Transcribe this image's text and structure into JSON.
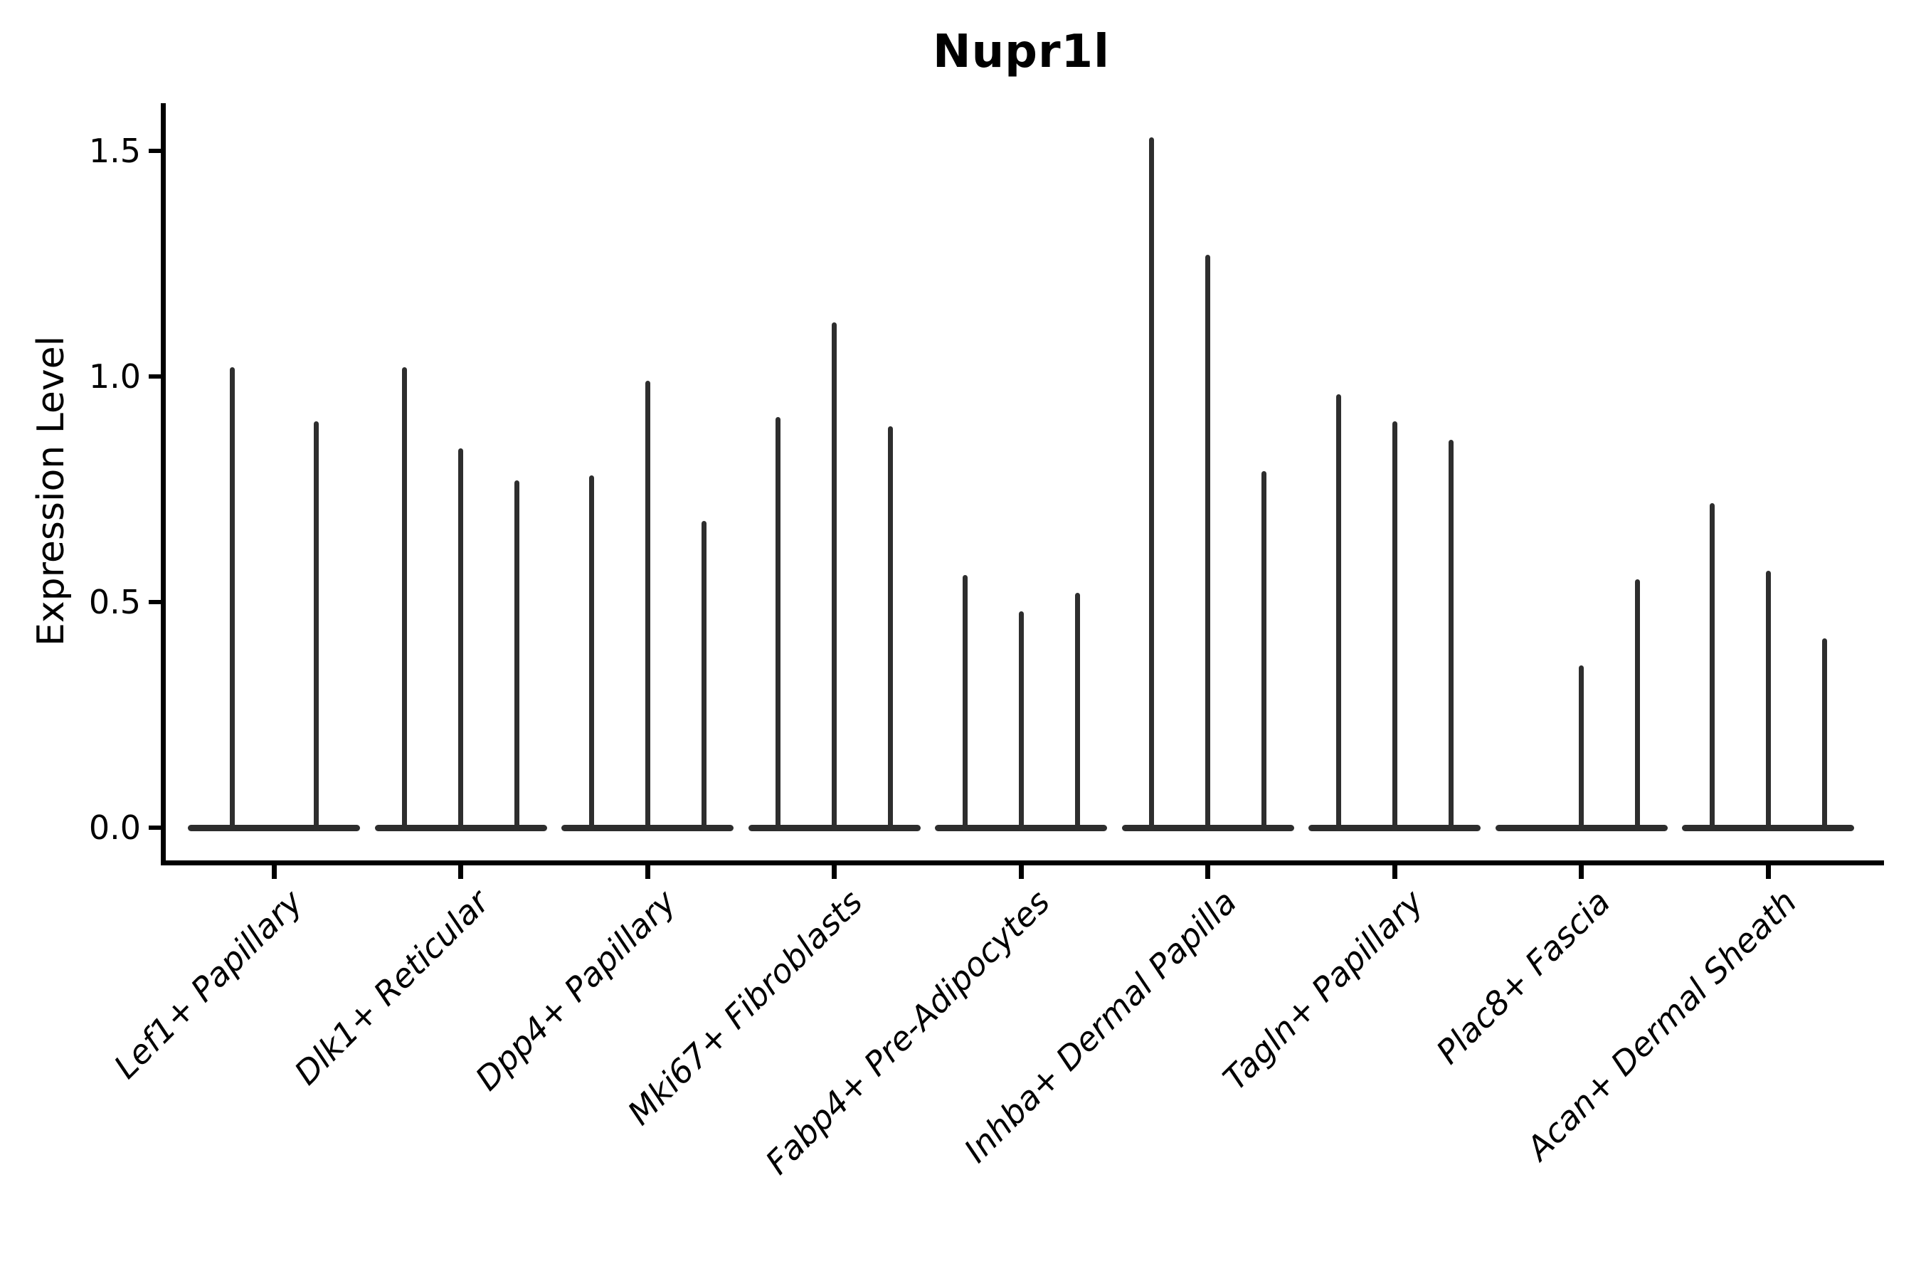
{
  "title": "Nupr1l",
  "y_axis": {
    "label": "Expression Level",
    "tick_labels": [
      "1.5",
      "1.0",
      "0.5",
      "0.0"
    ]
  },
  "colors": {
    "violin": "#2d2d2d",
    "axis": "#000000",
    "background": "#ffffff"
  },
  "chart_data": {
    "type": "violin",
    "title": "Nupr1l",
    "xlabel": "",
    "ylabel": "Expression Level",
    "yticks": [
      0.0,
      0.5,
      1.0,
      1.5
    ],
    "ylim": [
      -0.08,
      1.61
    ],
    "grid": false,
    "legend": "none",
    "style_note": "sparse single-cell expression violins: thin vertical spikes to each sample max with flat dense body at 0; 3 violin slots per category, some slots empty",
    "categories": [
      "Lef1+ Papillary",
      "Dlk1+ Reticular",
      "Dpp4+ Papillary",
      "Mki67+ Fibroblasts",
      "Fabp4+ Pre-Adipocytes",
      "Inhba+ Dermal Papilla",
      "Tagln+ Papillary",
      "Plac8+ Fascia",
      "Acan+ Dermal Sheath"
    ],
    "groups": [
      {
        "category": "Lef1+ Papillary",
        "violins": [
          {
            "offset": -59,
            "max": 1.02
          },
          {
            "offset": 59,
            "max": 0.9
          }
        ]
      },
      {
        "category": "Dlk1+ Reticular",
        "violins": [
          {
            "offset": -79,
            "max": 1.02
          },
          {
            "offset": 0,
            "max": 0.84
          },
          {
            "offset": 79,
            "max": 0.77
          }
        ]
      },
      {
        "category": "Dpp4+ Papillary",
        "violins": [
          {
            "offset": -79,
            "max": 0.78
          },
          {
            "offset": 0,
            "max": 0.99
          },
          {
            "offset": 79,
            "max": 0.68
          }
        ]
      },
      {
        "category": "Mki67+ Fibroblasts",
        "violins": [
          {
            "offset": -79,
            "max": 0.91
          },
          {
            "offset": 0,
            "max": 1.12
          },
          {
            "offset": 79,
            "max": 0.89
          }
        ]
      },
      {
        "category": "Fabp4+ Pre-Adipocytes",
        "violins": [
          {
            "offset": -79,
            "max": 0.56
          },
          {
            "offset": 0,
            "max": 0.48
          },
          {
            "offset": 79,
            "max": 0.52
          }
        ]
      },
      {
        "category": "Inhba+ Dermal Papilla",
        "violins": [
          {
            "offset": -79,
            "max": 1.53
          },
          {
            "offset": 0,
            "max": 1.27
          },
          {
            "offset": 79,
            "max": 0.79
          }
        ]
      },
      {
        "category": "Tagln+ Papillary",
        "violins": [
          {
            "offset": -79,
            "max": 0.96
          },
          {
            "offset": 0,
            "max": 0.9
          },
          {
            "offset": 79,
            "max": 0.86
          }
        ]
      },
      {
        "category": "Plac8+ Fascia",
        "violins": [
          {
            "offset": 0,
            "max": 0.36
          },
          {
            "offset": 79,
            "max": 0.55
          }
        ]
      },
      {
        "category": "Acan+ Dermal Sheath",
        "violins": [
          {
            "offset": -79,
            "max": 0.72
          },
          {
            "offset": 0,
            "max": 0.57
          },
          {
            "offset": 79,
            "max": 0.42
          }
        ]
      }
    ]
  }
}
